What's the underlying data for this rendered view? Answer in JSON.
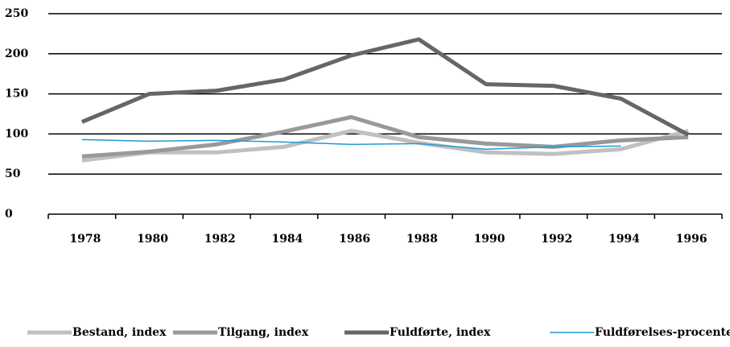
{
  "chart_data": {
    "type": "line",
    "categories": [
      "1978",
      "1980",
      "1982",
      "1984",
      "1986",
      "1988",
      "1990",
      "1992",
      "1994",
      "1996"
    ],
    "series": [
      {
        "name": "Bestand, index",
        "color": "#c0c0c0",
        "width": 5,
        "values": [
          67,
          77,
          77,
          84,
          104,
          89,
          77,
          75,
          81,
          104
        ]
      },
      {
        "name": "Tilgang, index",
        "color": "#999999",
        "width": 5,
        "values": [
          72,
          78,
          87,
          103,
          121,
          96,
          88,
          84,
          92,
          96
        ]
      },
      {
        "name": "Fuldførte, index",
        "color": "#666666",
        "width": 5,
        "values": [
          115,
          150,
          154,
          168,
          198,
          218,
          162,
          160,
          144,
          99
        ]
      },
      {
        "name": "Fuldførelses-procenter",
        "color": "#1e9bd7",
        "width": 1.5,
        "values": [
          93,
          91,
          92,
          90,
          87,
          88,
          81,
          84,
          85,
          null
        ]
      }
    ],
    "ylim": [
      0,
      250
    ],
    "yticks": [
      0,
      50,
      100,
      150,
      200,
      250
    ],
    "grid": true,
    "legend": "bottom"
  }
}
